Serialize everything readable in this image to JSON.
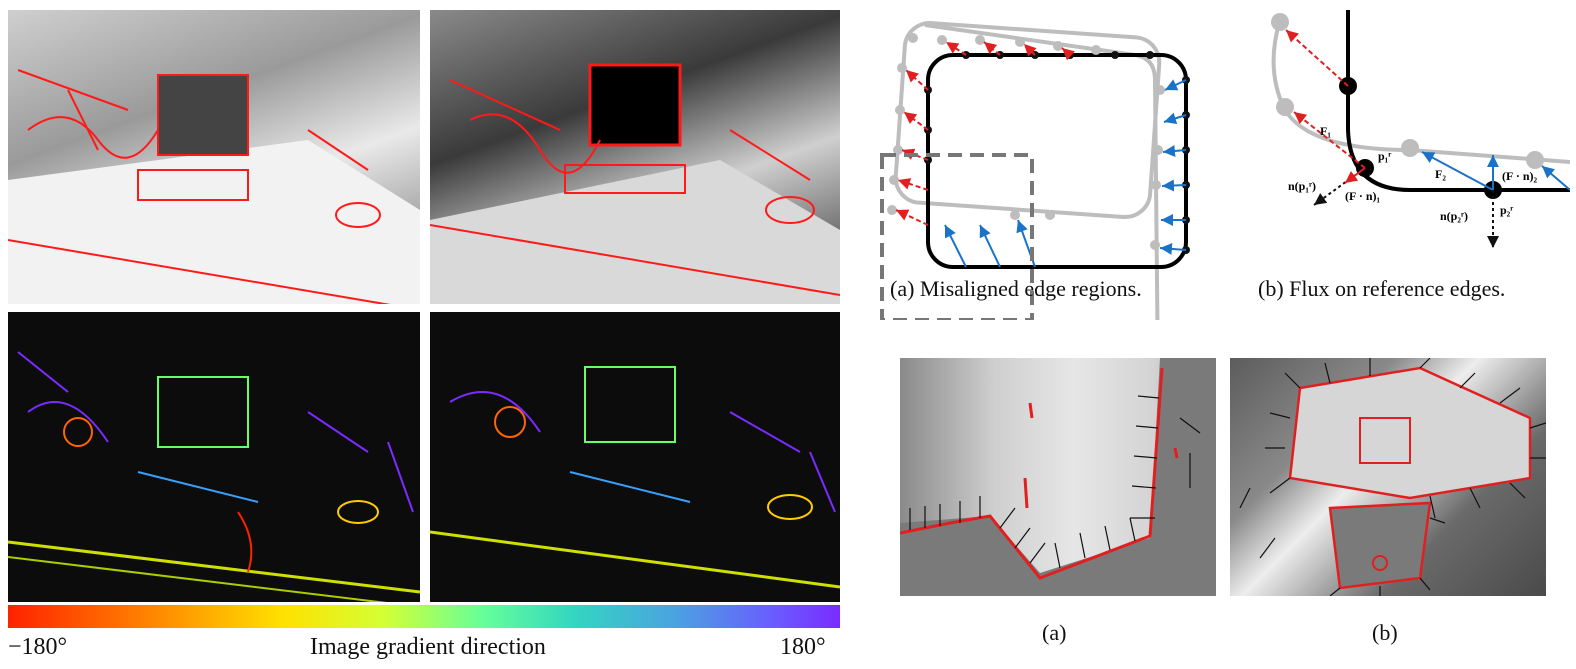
{
  "left_figure": {
    "colorbar_min": "−180°",
    "colorbar_max": "180°",
    "colorbar_label": "Image gradient direction"
  },
  "top_right_figure": {
    "caption_a": "(a) Misaligned edge regions.",
    "caption_b": "(b) Flux on reference edges.",
    "labels": {
      "f1": "F₁",
      "f2": "F₂",
      "p1": "p₁ʳ",
      "p2": "p₂ʳ",
      "n_p1": "n(p₁ʳ)",
      "n_p2": "n(p₂ʳ)",
      "fn1": "(F · n)₁",
      "fn2": "(F · n)₂"
    }
  },
  "bottom_right_figure": {
    "caption_a": "(a)",
    "caption_b": "(b)"
  },
  "colors": {
    "reference_edge": "#000000",
    "misaligned_edge": "#bdbdbd",
    "red_arrow": "#e02020",
    "blue_arrow": "#1a73c7",
    "edge_overlay": "#ff1a1a"
  }
}
